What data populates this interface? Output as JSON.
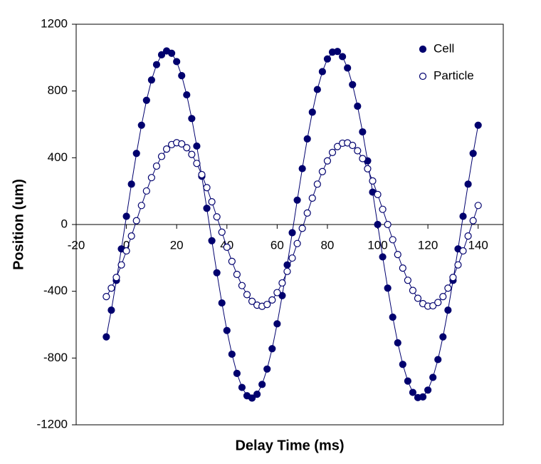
{
  "chart_data": {
    "type": "scatter",
    "x_label": "Delay Time (ms)",
    "y_label": "Position (um)",
    "x": [
      -8,
      -6,
      -4,
      -2,
      0,
      2,
      4,
      6,
      8,
      10,
      12,
      14,
      16,
      18,
      20,
      22,
      24,
      26,
      28,
      30,
      32,
      34,
      36,
      38,
      40,
      42,
      44,
      46,
      48,
      50,
      52,
      54,
      56,
      58,
      60,
      62,
      64,
      66,
      68,
      70,
      72,
      74,
      76,
      78,
      80,
      82,
      84,
      86,
      88,
      90,
      92,
      94,
      96,
      98,
      100,
      102,
      104,
      106,
      108,
      110,
      112,
      114,
      116,
      118,
      120,
      122,
      124,
      126,
      128,
      130,
      132,
      134,
      136,
      138,
      140
    ],
    "series": [
      {
        "name": "Cell",
        "color": "#00006e",
        "filled": true,
        "values": [
          -673,
          -513,
          -335,
          -146,
          49,
          242,
          426,
          595,
          744,
          866,
          958,
          1017,
          1040,
          1026,
          976,
          892,
          777,
          635,
          470,
          289,
          97,
          -97,
          -289,
          -470,
          -635,
          -777,
          -892,
          -976,
          -1026,
          -1040,
          -1017,
          -958,
          -866,
          -744,
          -595,
          -426,
          -242,
          -49,
          146,
          335,
          513,
          673,
          809,
          916,
          992,
          1033,
          1037,
          1006,
          938,
          838,
          709,
          555,
          381,
          194,
          0,
          -194,
          -381,
          -555,
          -709,
          -838,
          -938,
          -1006,
          -1037,
          -1033,
          -992,
          -916,
          -809,
          -673,
          -513,
          -335,
          -146,
          49,
          242,
          426,
          595
        ]
      },
      {
        "name": "Particle",
        "color": "#00006e",
        "filled": false,
        "values": [
          -432,
          -381,
          -317,
          -242,
          -158,
          -69,
          23,
          114,
          201,
          281,
          350,
          408,
          452,
          479,
          490,
          483,
          460,
          420,
          366,
          299,
          221,
          136,
          46,
          -46,
          -136,
          -221,
          -299,
          -366,
          -420,
          -460,
          -483,
          -490,
          -479,
          -452,
          -408,
          -350,
          -281,
          -201,
          -114,
          -23,
          69,
          158,
          242,
          317,
          381,
          432,
          467,
          487,
          489,
          474,
          442,
          395,
          334,
          261,
          180,
          91,
          0,
          -91,
          -180,
          -261,
          -334,
          -395,
          -442,
          -474,
          -489,
          -487,
          -467,
          -432,
          -381,
          -317,
          -242,
          -158,
          -69,
          23,
          114
        ]
      }
    ],
    "xlim": [
      -20,
      150
    ],
    "xticks": [
      -20,
      0,
      20,
      40,
      60,
      80,
      100,
      120,
      140
    ],
    "ylim": [
      -1200,
      1200
    ],
    "yticks": [
      -1200,
      -800,
      -400,
      0,
      400,
      800,
      1200
    ],
    "fit_lines": true,
    "legend": "upper right"
  }
}
